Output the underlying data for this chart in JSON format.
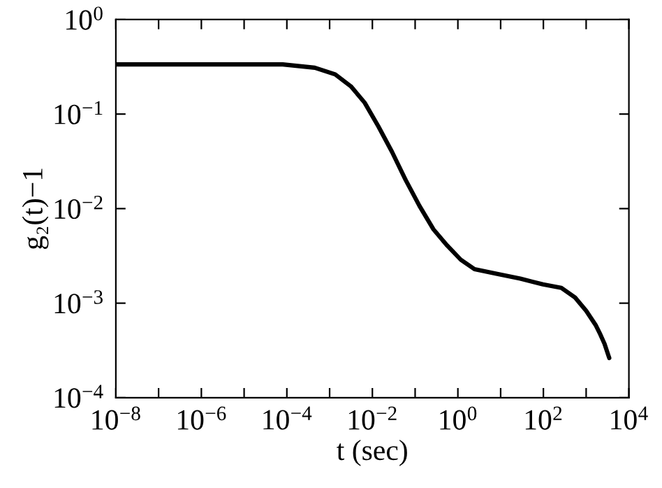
{
  "chart_data": {
    "type": "line",
    "xlabel": "t (sec)",
    "ylabel": "g₂(t)−1",
    "log": "xy",
    "marker": "none",
    "line_style": "solid",
    "xlim": [
      1e-08,
      10000.0
    ],
    "ylim": [
      0.0001,
      1
    ],
    "xticks": [
      {
        "value": 1e-08,
        "label": "10$^{−8}$"
      },
      {
        "value": 1e-07,
        "label": null
      },
      {
        "value": 1e-06,
        "label": "10$^{−6}$"
      },
      {
        "value": 1e-05,
        "label": null
      },
      {
        "value": 0.0001,
        "label": "10$^{−4}$"
      },
      {
        "value": 0.001,
        "label": null
      },
      {
        "value": 0.01,
        "label": "10$^{−2}$"
      },
      {
        "value": 0.1,
        "label": null
      },
      {
        "value": 1,
        "label": "10$^{0}$"
      },
      {
        "value": 10,
        "label": null
      },
      {
        "value": 100,
        "label": "10$^{2}$"
      },
      {
        "value": 1000,
        "label": null
      },
      {
        "value": 10000,
        "label": "10$^{4}$"
      }
    ],
    "yticks": [
      {
        "value": 0.0001,
        "label": "10$^{−4}$"
      },
      {
        "value": 0.001,
        "label": "10$^{−3}$"
      },
      {
        "value": 0.01,
        "label": "10$^{−2}$"
      },
      {
        "value": 0.1,
        "label": "10$^{−1}$"
      },
      {
        "value": 1,
        "label": "10$^{0}$"
      }
    ],
    "series": [
      {
        "color": "#000000",
        "x": [
          1e-08,
          8e-05,
          0.00045,
          0.00135,
          0.0032,
          0.0066,
          0.0138,
          0.0288,
          0.0603,
          0.126,
          0.269,
          0.562,
          1.17,
          2.45,
          8.3,
          28.8,
          98,
          263,
          550,
          1000,
          1660,
          2140,
          2690,
          3470
        ],
        "values": [
          0.335,
          0.335,
          0.309,
          0.263,
          0.195,
          0.132,
          0.0741,
          0.0398,
          0.02,
          0.0107,
          0.00603,
          0.00407,
          0.00288,
          0.00229,
          0.00204,
          0.00182,
          0.00158,
          0.00145,
          0.00115,
          0.000832,
          0.000589,
          0.000468,
          0.000372,
          0.000263
        ]
      }
    ]
  }
}
